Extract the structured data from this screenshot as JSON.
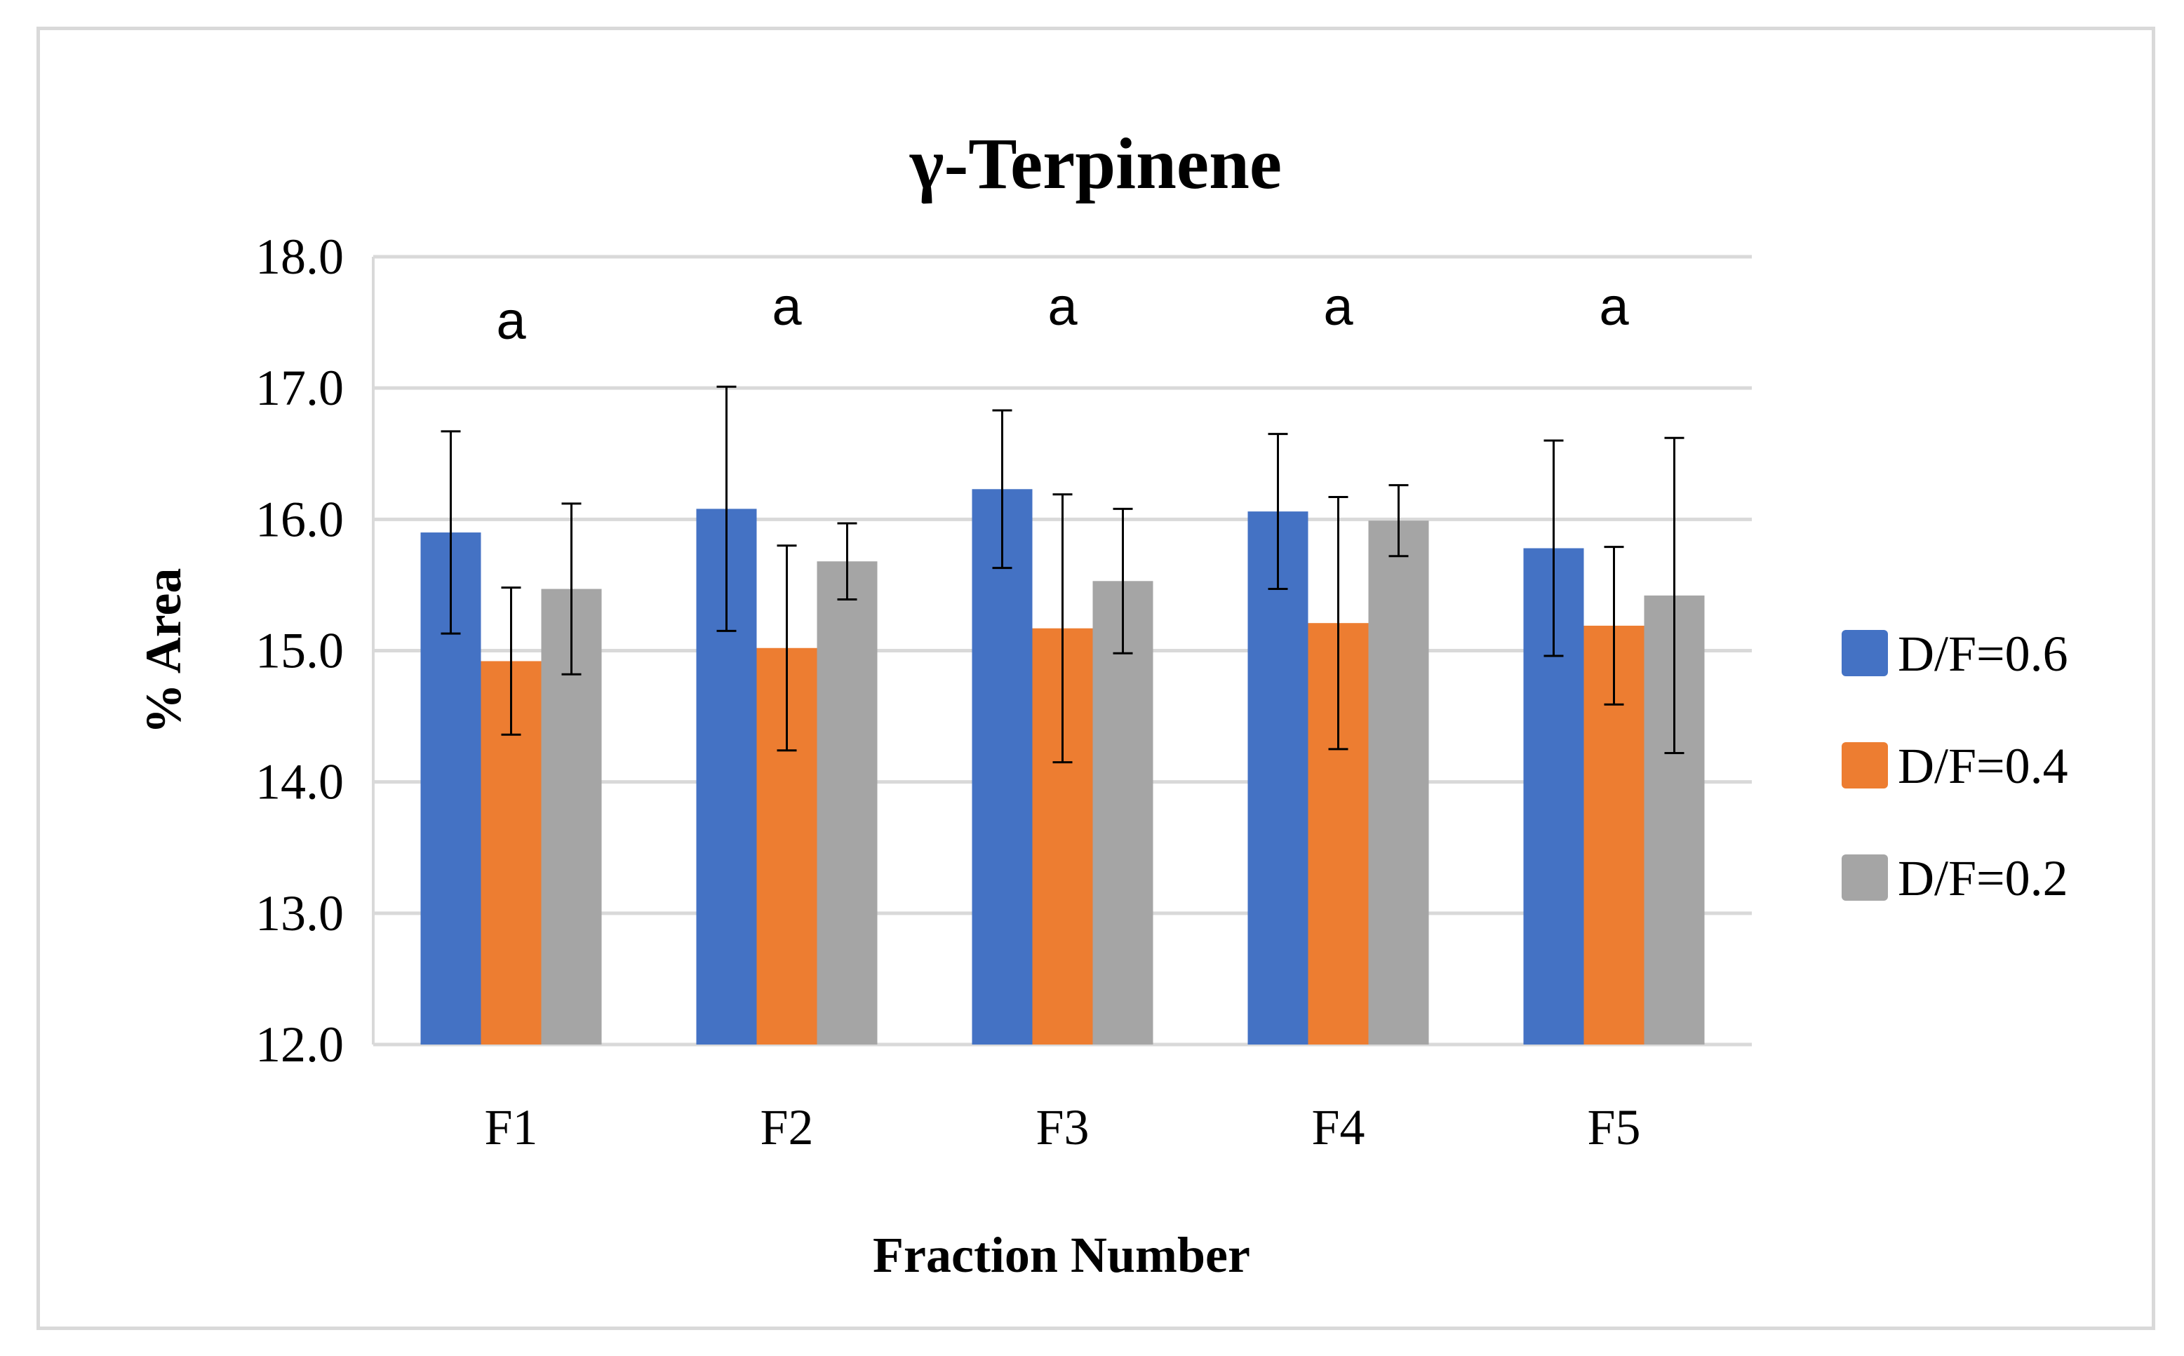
{
  "chart_data": {
    "type": "bar",
    "title": "γ-Terpinene",
    "xlabel": "Fraction Number",
    "ylabel": "% Area",
    "ylim": [
      12.0,
      18.0
    ],
    "yticks": [
      "12.0",
      "13.0",
      "14.0",
      "15.0",
      "16.0",
      "17.0",
      "18.0"
    ],
    "grid": true,
    "legend_position": "right",
    "categories": [
      "F1",
      "F2",
      "F3",
      "F4",
      "F5"
    ],
    "series": [
      {
        "name": "D/F=0.6",
        "color": "#4472c4",
        "values": [
          15.9,
          16.08,
          16.23,
          16.06,
          15.78
        ],
        "errors": [
          0.77,
          0.93,
          0.6,
          0.59,
          0.82
        ]
      },
      {
        "name": "D/F=0.4",
        "color": "#ed7d31",
        "values": [
          14.92,
          15.02,
          15.17,
          15.21,
          15.19
        ],
        "errors": [
          0.56,
          0.78,
          1.02,
          0.96,
          0.6
        ]
      },
      {
        "name": "D/F=0.2",
        "color": "#a5a5a5",
        "values": [
          15.47,
          15.68,
          15.53,
          15.99,
          15.42
        ],
        "errors": [
          0.65,
          0.29,
          0.55,
          0.27,
          1.2
        ]
      }
    ],
    "annotations": [
      "a",
      "a",
      "a",
      "a",
      "a"
    ]
  }
}
